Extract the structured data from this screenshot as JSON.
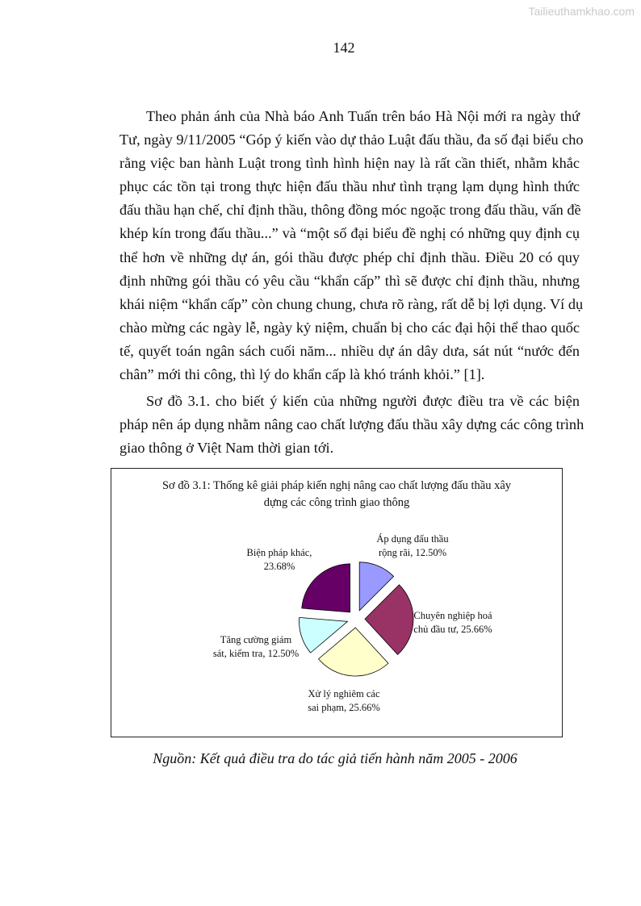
{
  "watermark": "Tailieuthamkhao.com",
  "page_number": "142",
  "paragraph1_lines": [
    "Theo phản ánh của Nhà báo Anh Tuấn trên báo Hà Nội mới ra ngày thứ",
    "Tư, ngày 9/11/2005 “Góp ý kiến vào dự thảo Luật đấu thầu, đa số đại biểu cho",
    "rằng việc ban hành Luật trong tình hình hiện nay là rất cần thiết, nhằm khắc",
    "phục các tồn tại trong thực hiện đấu thầu như tình trạng lạm dụng hình thức",
    "đấu thầu hạn chế, chỉ định thầu, thông đồng móc ngoặc trong đấu thầu, vấn đề",
    "khép kín trong đấu thầu...” và “một số đại biểu đề nghị có những quy định cụ",
    "thể hơn về những dự án, gói thầu được phép chỉ định thầu. Điều 20 có quy",
    "định những gói thầu có yêu cầu “khẩn cấp” thì sẽ được chỉ định thầu, nhưng",
    "khái niệm “khẩn cấp” còn chung chung, chưa rõ ràng, rất dễ bị lợi dụng. Ví dụ",
    "chào mừng các ngày lễ, ngày kỷ niệm, chuẩn bị cho các đại hội thể thao quốc",
    "tế, quyết toán ngân sách cuối năm... nhiều dự án dây dưa, sát nút “nước đến",
    "chân” mới thi công, thì lý do khẩn cấp là khó tránh khỏi.”  [1]."
  ],
  "paragraph2_lines": [
    "Sơ đồ 3.1. cho biết ý kiến của những người được điều tra về các biện",
    "pháp nên áp dụng nhằm nâng cao chất lượng đấu thầu xây dựng các công trình",
    "giao thông ở Việt Nam thời gian tới."
  ],
  "chart_data": {
    "type": "pie",
    "title": [
      "Sơ đồ 3.1: Thống kê giải pháp kiến nghị nâng cao chất lượng đấu thầu xây",
      "dựng các công trình giao thông"
    ],
    "exploded": true,
    "start": "12 o'clock, clockwise",
    "slices": [
      {
        "label": [
          "Áp dụng đấu thầu",
          "rộng rãi, 12.50%"
        ],
        "value": 12.5,
        "color": "#9999FF"
      },
      {
        "label": [
          "Chuyên nghiệp hoá",
          "chủ đầu tư, 25.66%"
        ],
        "value": 25.66,
        "color": "#993366"
      },
      {
        "label": [
          "Xử lý nghiêm các",
          "sai phạm, 25.66%"
        ],
        "value": 25.66,
        "color": "#FFFFCC"
      },
      {
        "label": [
          "Tăng cường giám",
          "sát, kiểm tra, 12.50%"
        ],
        "value": 12.5,
        "color": "#CCFFFF"
      },
      {
        "label": [
          "Biện pháp khác,",
          "23.68%"
        ],
        "value": 23.68,
        "color": "#660066"
      }
    ]
  },
  "source": "Nguồn: Kết quả điều tra do tác giả tiến hành năm 2005 - 2006"
}
